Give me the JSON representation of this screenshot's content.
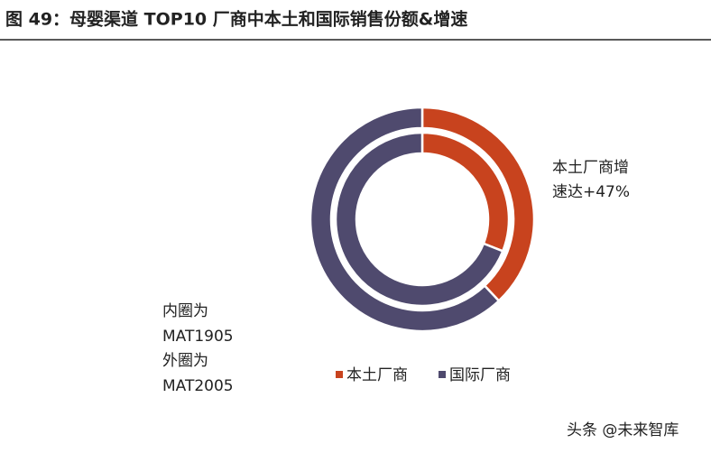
{
  "chart_data": {
    "type": "donut",
    "title": "图 49：母婴渠道 TOP10 厂商中本土和国际销售份额&增速",
    "categories": [
      "本土厂商",
      "国际厂商"
    ],
    "colors": [
      "#c8431e",
      "#4f4a6e"
    ],
    "rings": [
      {
        "values": [
          31,
          69
        ]
      },
      {
        "values": [
          38,
          62
        ]
      }
    ],
    "annotations": {
      "growth": [
        "本土厂商增",
        "速达+47%"
      ],
      "rings_note": [
        "内圈为",
        "MAT1905",
        "外圈为",
        "MAT2005"
      ]
    },
    "watermark": "头条 @未来智库"
  }
}
